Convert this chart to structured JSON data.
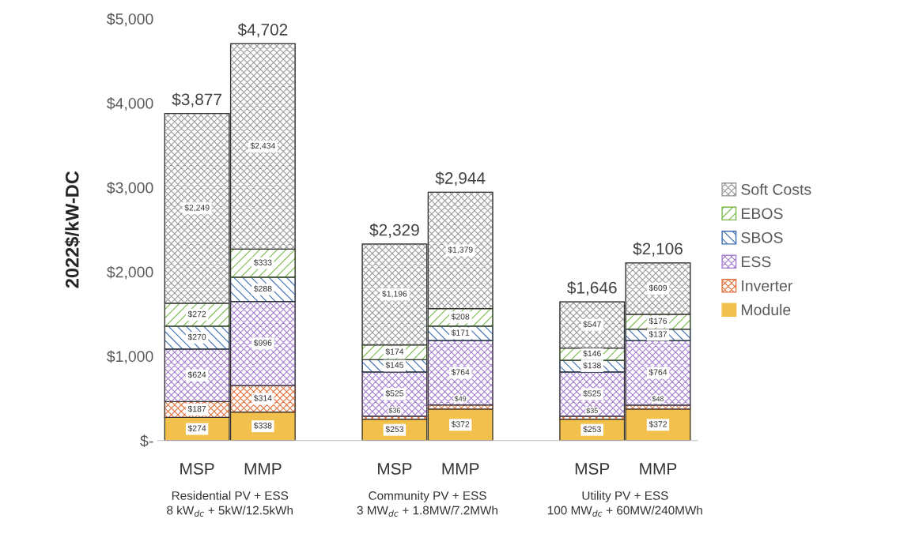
{
  "chart_data": {
    "type": "bar",
    "stacked": true,
    "ylabel": "2022$/kW-DC",
    "categories": [
      "MSP",
      "MMP",
      null,
      "MSP",
      "MMP",
      null,
      "MSP",
      "MMP"
    ],
    "series": [
      {
        "name": "Module",
        "color": "#f2c04c",
        "values": [
          274,
          338,
          null,
          253,
          372,
          null,
          253,
          372
        ],
        "value_labels": [
          "$274",
          "$338",
          null,
          "$253",
          "$372",
          null,
          "$253",
          "$372"
        ]
      },
      {
        "name": "Inverter",
        "color": "#e2703a",
        "values": [
          187,
          314,
          null,
          36,
          49,
          null,
          35,
          48
        ],
        "value_labels": [
          "$187",
          "$314",
          null,
          "$36",
          "$49",
          null,
          "$35",
          "$48"
        ]
      },
      {
        "name": "ESS",
        "color": "#a47ed0",
        "values": [
          624,
          996,
          null,
          525,
          764,
          null,
          525,
          764
        ],
        "value_labels": [
          "$624",
          "$996",
          null,
          "$525",
          "$764",
          null,
          "$525",
          "$764"
        ]
      },
      {
        "name": "SBOS",
        "color": "#3c6db4",
        "values": [
          270,
          288,
          null,
          145,
          171,
          null,
          138,
          137
        ],
        "value_labels": [
          "$270",
          "$288",
          null,
          "$145",
          "$171",
          null,
          "$138",
          "$137"
        ]
      },
      {
        "name": "EBOS",
        "color": "#79b94a",
        "values": [
          272,
          333,
          null,
          174,
          208,
          null,
          146,
          176
        ],
        "value_labels": [
          "$272",
          "$333",
          null,
          "$174",
          "$208",
          null,
          "$146",
          "$176"
        ]
      },
      {
        "name": "Soft Costs",
        "color": "#9a9a9a",
        "values": [
          2249,
          2434,
          null,
          1196,
          1379,
          null,
          547,
          609
        ],
        "value_labels": [
          "$2,249",
          "$2,434",
          null,
          "$1,196",
          "$1,379",
          null,
          "$547",
          "$609"
        ]
      }
    ],
    "totals": [
      "$3,877",
      "$4,702",
      null,
      "$2,329",
      "$2,944",
      null,
      "$1,646",
      "$2,106"
    ],
    "annotations": [
      "Residential PV + ESS\n8 kW$_{dc}$ + 5kW/12.5kWh",
      "Community PV + ESS\n3 MW$_{dc}$ + 1.8MW/7.2MWh",
      "Utility PV + ESS\n100 MW$_{dc}$ + 60MW/240MWh"
    ],
    "ylim": [
      0,
      5000
    ],
    "yticks": [
      {
        "value": 0,
        "label": "$-"
      },
      {
        "value": 1000,
        "label": "$1,000"
      },
      {
        "value": 2000,
        "label": "$2,000"
      },
      {
        "value": 3000,
        "label": "$3,000"
      },
      {
        "value": 4000,
        "label": "$4,000"
      },
      {
        "value": 5000,
        "label": "$5,000"
      }
    ],
    "grid": false,
    "legend": "right"
  }
}
